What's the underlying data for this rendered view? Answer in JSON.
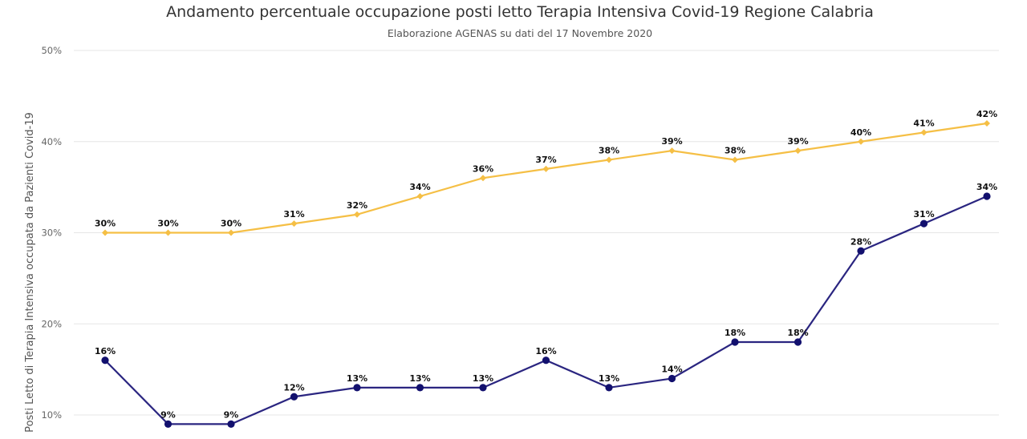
{
  "chart_data": {
    "type": "line",
    "title": "Andamento percentuale occupazione posti letto Terapia Intensiva Covid-19 Regione Calabria",
    "subtitle": "Elaborazione AGENAS su dati del 17 Novembre 2020",
    "xlabel": "",
    "ylabel": "Posti Letto di Terapia Intensiva occupata da Pazienti Covid-19",
    "ylim": [
      10,
      50
    ],
    "yticks": [
      10,
      20,
      30,
      40,
      50
    ],
    "ytick_labels": [
      "10%",
      "20%",
      "30%",
      "40%",
      "50%"
    ],
    "grid": true,
    "legend": "none",
    "x": [
      1,
      2,
      3,
      4,
      5,
      6,
      7,
      8,
      9,
      10,
      11,
      12,
      13,
      14,
      15
    ],
    "series": [
      {
        "color": "#f5bf45",
        "marker": "diamond",
        "values": [
          30,
          30,
          30,
          31,
          32,
          34,
          36,
          37,
          38,
          39,
          38,
          39,
          40,
          41,
          42
        ],
        "labels": [
          "30%",
          "30%",
          "30%",
          "31%",
          "32%",
          "34%",
          "36%",
          "37%",
          "38%",
          "39%",
          "38%",
          "39%",
          "40%",
          "41%",
          "42%"
        ]
      },
      {
        "color": "#2a2580",
        "marker_color": "#12106e",
        "marker": "circle",
        "values": [
          16,
          9,
          9,
          12,
          13,
          13,
          13,
          16,
          13,
          14,
          18,
          18,
          28,
          31,
          34
        ],
        "labels": [
          "16%",
          "9%",
          "9%",
          "12%",
          "13%",
          "13%",
          "13%",
          "16%",
          "13%",
          "14%",
          "18%",
          "18%",
          "28%",
          "31%",
          "34%"
        ]
      }
    ]
  }
}
